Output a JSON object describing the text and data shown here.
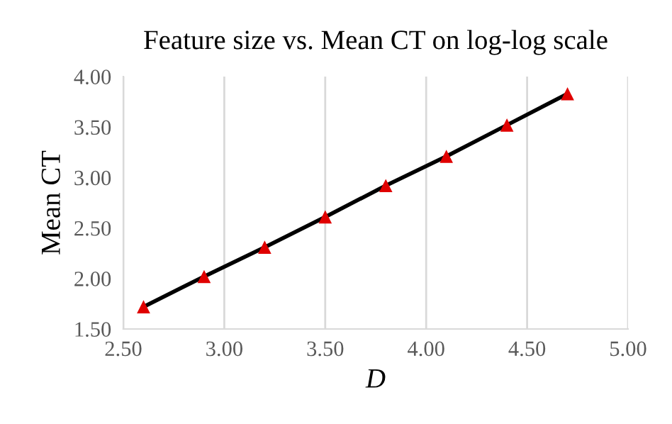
{
  "chart_data": {
    "type": "line",
    "title": "Feature size vs. Mean CT on log-log scale",
    "xlabel": "D",
    "ylabel": "Mean CT",
    "series": [
      {
        "color": "#000000",
        "colors": [
          "#e00000",
          "#e00000",
          "#e00000",
          "#e00000",
          "#e00000",
          "#e00000",
          "#e00000",
          "#e00000"
        ],
        "x": [
          2.6,
          2.9,
          3.2,
          3.5,
          3.8,
          4.1,
          4.4,
          4.7
        ],
        "values": [
          1.72,
          2.02,
          2.31,
          2.61,
          2.92,
          3.21,
          3.52,
          3.83
        ]
      }
    ],
    "xlim": [
      2.5,
      5.0
    ],
    "xticks": [
      {
        "value": 2.5,
        "label": "2.50"
      },
      {
        "value": 3.0,
        "label": "3.00"
      },
      {
        "value": 3.5,
        "label": "3.50"
      },
      {
        "value": 4.0,
        "label": "4.00"
      },
      {
        "value": 4.5,
        "label": "4.50"
      },
      {
        "value": 5.0,
        "label": "5.00"
      }
    ],
    "ylim": [
      1.5,
      4.0
    ],
    "yticks": [
      {
        "value": 1.5,
        "label": "1.50"
      },
      {
        "value": 2.0,
        "label": "2.00"
      },
      {
        "value": 2.5,
        "label": "2.50"
      },
      {
        "value": 3.0,
        "label": "3.00"
      },
      {
        "value": 3.5,
        "label": "3.50"
      },
      {
        "value": 4.0,
        "label": "4.00"
      }
    ],
    "grid": "x",
    "marker": "triangle",
    "line_style": "solid"
  }
}
